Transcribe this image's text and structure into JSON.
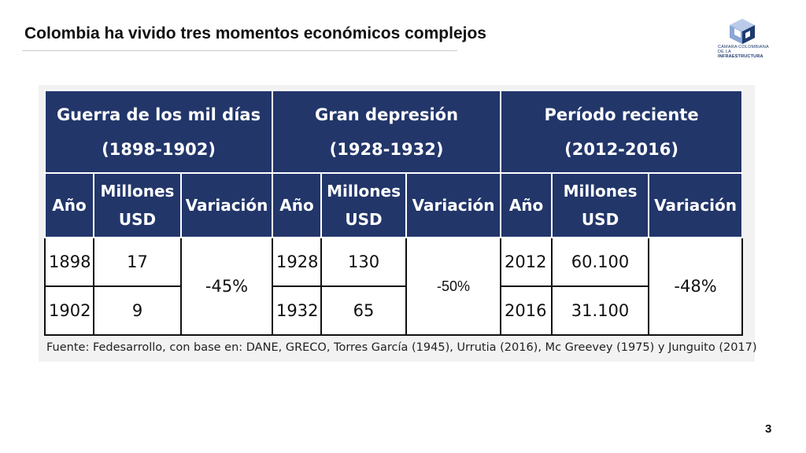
{
  "slide": {
    "title": "Colombia ha vivido tres momentos económicos complejos",
    "page_number": "3"
  },
  "logo": {
    "line1": "CÁMARA COLOMBIANA",
    "line2_prefix": "DE LA ",
    "line2_bold": "INFRAESTRUCTURA",
    "colors": {
      "primary": "#1e3a6e",
      "light": "#8aa7d6"
    }
  },
  "table": {
    "periods": [
      {
        "name": "Guerra de los mil días",
        "years": "(1898-1902)"
      },
      {
        "name": "Gran depresión",
        "years": "(1928-1932)"
      },
      {
        "name": "Período reciente",
        "years": "(2012-2016)"
      }
    ],
    "subheaders": {
      "year": "Año",
      "millions": "Millones USD",
      "variation": "Variación"
    },
    "rows": [
      {
        "y1": "1898",
        "v1": "17",
        "y2": "1928",
        "v2": "130",
        "y3": "2012",
        "v3": "60.100"
      },
      {
        "y1": "1902",
        "v1": "9",
        "y2": "1932",
        "v2": "65",
        "y3": "2016",
        "v3": "31.100"
      }
    ],
    "variations": [
      "-45%",
      "-50%",
      "-48%"
    ],
    "header_color": "#22366a"
  },
  "source": "Fuente: Fedesarrollo, con base en: DANE, GRECO, Torres García (1945), Urrutia (2016), Mc Greevey (1975) y Junguito (2017)"
}
